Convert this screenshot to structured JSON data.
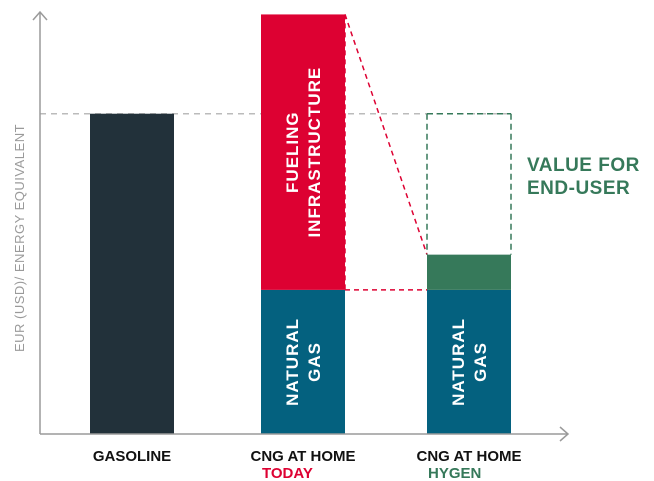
{
  "chart_data": {
    "type": "bar",
    "stacked": true,
    "title": "",
    "xlabel": "",
    "ylabel": "EUR (USD)/ ENERGY EQUIVALENT",
    "ylim": [
      0,
      130
    ],
    "grid": false,
    "categories": [
      {
        "label": "GASOLINE",
        "sublabel": ""
      },
      {
        "label": "CNG AT HOME",
        "sublabel": "TODAY"
      },
      {
        "label": "CNG AT HOME",
        "sublabel": "HYGEN"
      }
    ],
    "series": [
      {
        "name": "GASOLINE",
        "color": "#22313a",
        "label_lines": [],
        "values": [
          100,
          0,
          0
        ]
      },
      {
        "name": "NATURAL GAS",
        "color": "#04617f",
        "label_lines": [
          "NATURAL",
          "GAS"
        ],
        "values": [
          0,
          45,
          45
        ]
      },
      {
        "name": "FUELING INFRASTRUCTURE",
        "color": "#dd0132",
        "label_lines": [
          "FUELING",
          "INFRASTRUCTURE"
        ],
        "values": [
          0,
          86,
          0
        ]
      },
      {
        "name": "HYGEN",
        "color": "#36795a",
        "label_lines": [],
        "values": [
          0,
          0,
          11
        ]
      }
    ],
    "reference_line": {
      "value": 100,
      "style": "dashed",
      "color": "#bbbbbb"
    },
    "annotation": {
      "lines": [
        "VALUE FOR",
        "END-USER"
      ],
      "color": "#36795a",
      "range": [
        56,
        100
      ]
    },
    "colors": {
      "axis": "#9a9a9a",
      "today": "#dd0132",
      "hygen": "#36795a",
      "connector": "#dd0132"
    }
  }
}
